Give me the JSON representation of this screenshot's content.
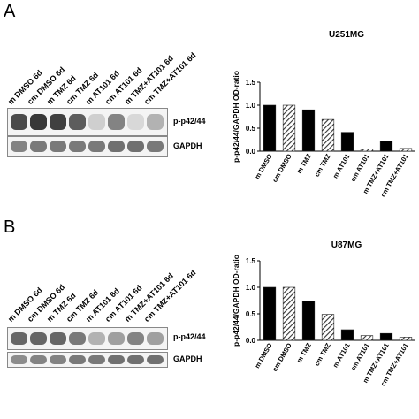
{
  "panels": [
    {
      "letter": "A",
      "lanes": [
        "m DMSO 6d",
        "cm DMSO 6d",
        "m TMZ 6d",
        "cm TMZ 6d",
        "m AT101 6d",
        "cm AT101 6d",
        "m TMZ+AT101 6d",
        "cm TMZ+AT101 6d"
      ],
      "blot_labels": [
        "p-p42/44",
        "GAPDH"
      ],
      "band_intensity_top": [
        0.85,
        0.95,
        0.9,
        0.75,
        0.15,
        0.55,
        0.1,
        0.3
      ],
      "band_intensity_bottom": [
        0.55,
        0.6,
        0.6,
        0.6,
        0.6,
        0.65,
        0.65,
        0.6
      ]
    },
    {
      "letter": "B",
      "lanes": [
        "m DMSO 6d",
        "cm DMSO 6d",
        "m TMZ 6d",
        "cm TMZ 6d",
        "m AT101 6d",
        "cm AT101 6d",
        "m TMZ+AT101 6d",
        "cm TMZ+AT101 6d"
      ],
      "blot_labels": [
        "p-p42/44",
        "GAPDH"
      ],
      "band_intensity_top": [
        0.7,
        0.7,
        0.7,
        0.6,
        0.3,
        0.4,
        0.55,
        0.4
      ],
      "band_intensity_bottom": [
        0.5,
        0.55,
        0.55,
        0.6,
        0.6,
        0.65,
        0.65,
        0.65
      ]
    }
  ],
  "chart_data": [
    {
      "type": "bar",
      "title": "U251MG",
      "ylabel": "p-p42/44/GAPDH OD-ratio",
      "categories": [
        "m DMSO",
        "cm DMSO",
        "m TMZ",
        "cm TMZ",
        "m AT101",
        "cm AT101",
        "m TMZ+AT101",
        "cm TMZ+AT101"
      ],
      "values": [
        1.0,
        1.0,
        0.9,
        0.69,
        0.41,
        0.05,
        0.22,
        0.06
      ],
      "patterns": [
        "solid",
        "hatched",
        "solid",
        "hatched",
        "solid",
        "hatched",
        "solid",
        "hatched"
      ],
      "ylim": [
        0,
        1.5
      ],
      "yticks": [
        "0.0",
        "0.5",
        "1.0",
        "1.5"
      ]
    },
    {
      "type": "bar",
      "title": "U87MG",
      "ylabel": "p-p42/44/GAPDH OD-ratio",
      "categories": [
        "m DMSO",
        "cm DMSO",
        "m TMZ",
        "cm TMZ",
        "m AT101",
        "cm AT101",
        "m TMZ+AT101",
        "cm TMZ+AT101"
      ],
      "values": [
        1.0,
        1.0,
        0.74,
        0.49,
        0.2,
        0.09,
        0.13,
        0.06
      ],
      "patterns": [
        "solid",
        "hatched",
        "solid",
        "hatched",
        "solid",
        "hatched",
        "solid",
        "hatched"
      ],
      "ylim": [
        0,
        1.5
      ],
      "yticks": [
        "0.0",
        "0.5",
        "1.0",
        "1.5"
      ]
    }
  ]
}
